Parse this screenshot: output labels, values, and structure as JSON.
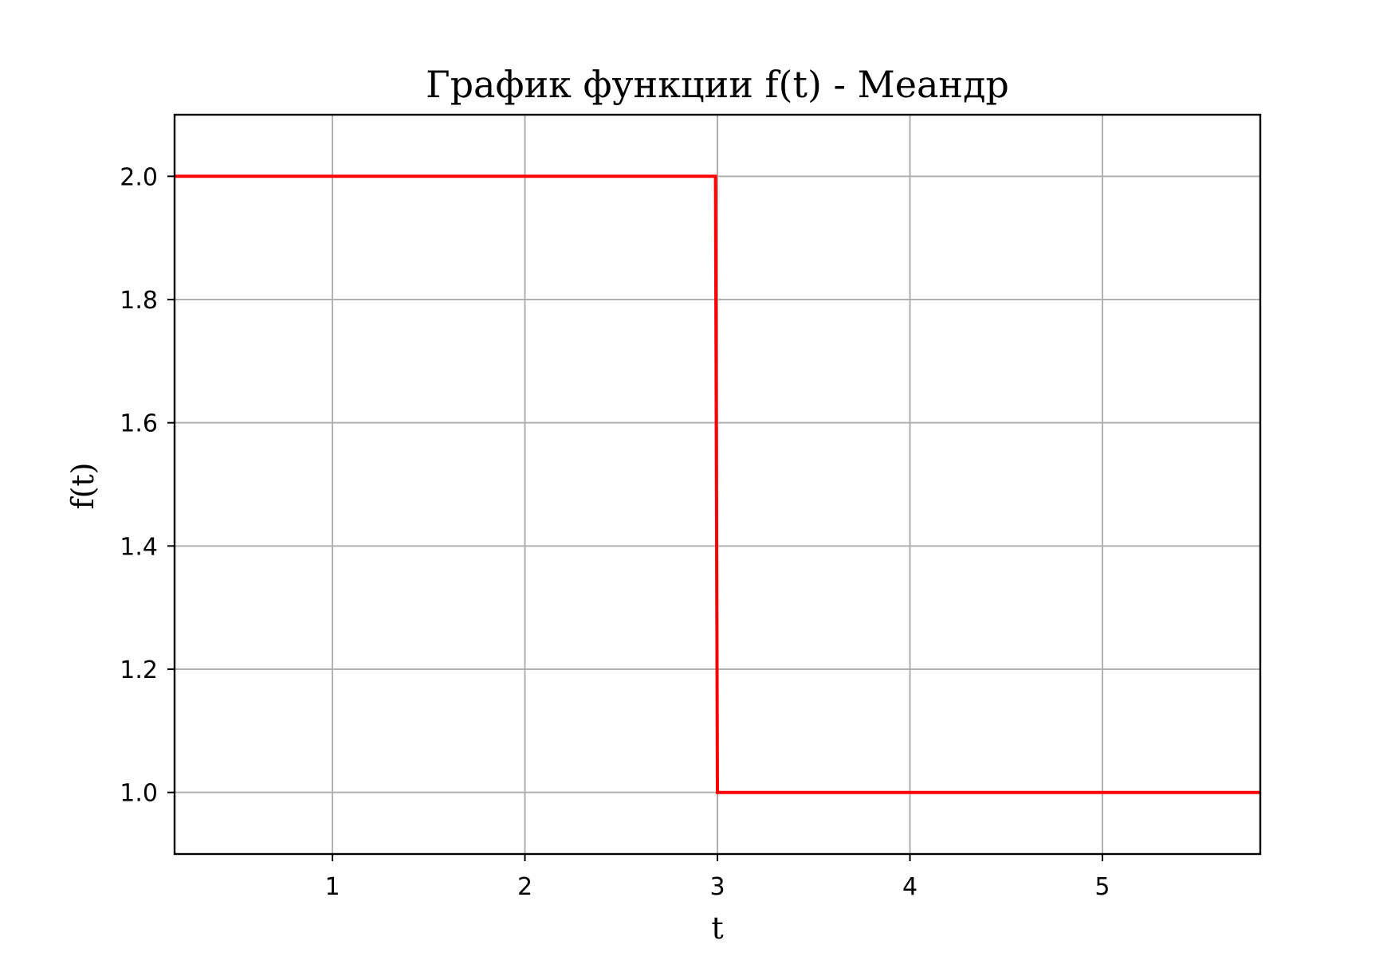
{
  "chart_data": {
    "type": "line",
    "title": "График функции f(t) - Меандр",
    "xlabel": "t",
    "ylabel": "f(t)",
    "xlim": [
      0.18,
      5.82
    ],
    "ylim": [
      0.9,
      2.1
    ],
    "xticks": [
      1,
      2,
      3,
      4,
      5
    ],
    "yticks": [
      1.0,
      1.2,
      1.4,
      1.6,
      1.8,
      2.0
    ],
    "grid": true,
    "legend": "none",
    "series": [
      {
        "color": "#ff0000",
        "x": [
          0.18,
          2.99,
          3.0,
          5.82
        ],
        "y": [
          2.0,
          2.0,
          1.0,
          1.0
        ]
      }
    ]
  }
}
